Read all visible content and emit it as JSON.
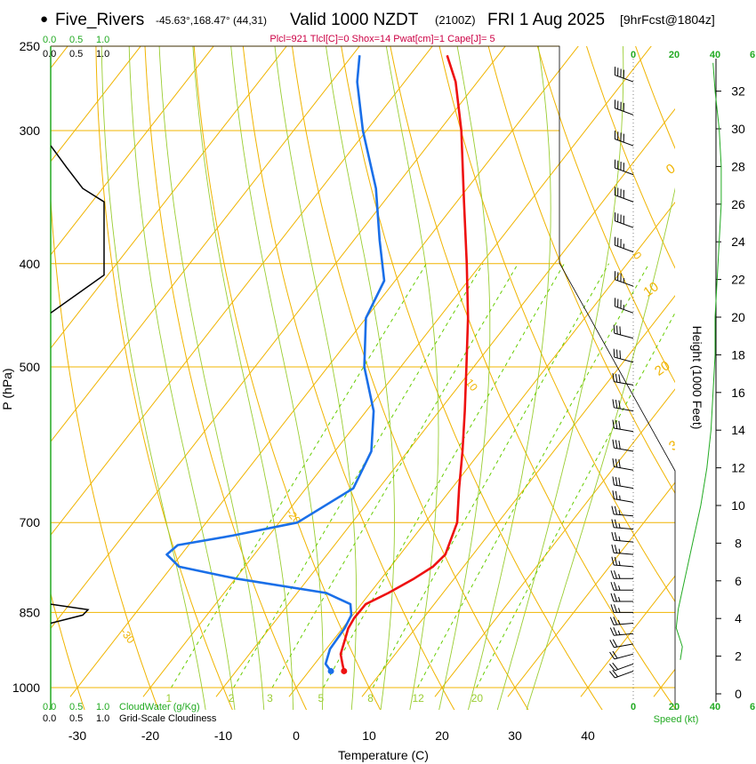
{
  "header": {
    "station_bullet": "●",
    "station": "Five_Rivers",
    "coords": "-45.63°,168.47° (44,31)",
    "valid": "Valid 1000 NZDT",
    "valid_z": "(2100Z)",
    "date": "FRI 1 Aug 2025",
    "fcst": "[9hrFcst@1804z]",
    "indices": "Plcl=921 Tlcl[C]=0 Shox=14 Pwat[cm]=1 Cape[J]= 5"
  },
  "colors": {
    "temperature": "#ee1111",
    "dewpoint": "#1a6fe8",
    "isotherm": "#f0b400",
    "dry_adiabat": "#f0b400",
    "moist_adiabat": "#9acd32",
    "mixing_ratio": "#66cc00",
    "cloud": "#000000",
    "wind_profile": "#22aa22",
    "indices_text": "#cc0044"
  },
  "chart_data": {
    "type": "line",
    "title": "Skew-T log-P sounding",
    "xlabel": "Temperature (C)",
    "ylabel": "P (hPa)",
    "right_label": "Height (1000 Feet)",
    "xlim": [
      -35,
      48
    ],
    "ylim": [
      1000,
      250
    ],
    "pressure_ticks": [
      250,
      300,
      400,
      500,
      700,
      850,
      1000
    ],
    "temp_ticks": [
      "-30",
      "-20",
      "-10",
      "0",
      "10",
      "20",
      "30",
      "40"
    ],
    "height_ticks": [
      "0",
      "2",
      "4",
      "6",
      "8",
      "10",
      "12",
      "14",
      "16",
      "18",
      "20",
      "22",
      "24",
      "26",
      "28",
      "30",
      "32"
    ],
    "isotherm_labels": [
      "10",
      "0",
      "-10",
      "-20",
      "-30",
      "0",
      "10",
      "20",
      "30"
    ],
    "mixing_ratio_labels": [
      "1",
      "2",
      "3",
      "5",
      "8",
      "12",
      "20"
    ],
    "cloud_scale_top": [
      "0.0",
      "0.5",
      "1.0"
    ],
    "cloud_scale_bottom": [
      "0.0",
      "0.5",
      "1.0"
    ],
    "cloudwater_label": "CloudWater (g/Kg)",
    "cloudiness_label": "Grid-Scale Cloudiness",
    "speed_ticks": [
      "0",
      "20",
      "40",
      "6"
    ],
    "speed_label": "Speed (kt)",
    "temperature": [
      {
        "p": 965,
        "t": 4.8
      },
      {
        "p": 950,
        "t": 3.8
      },
      {
        "p": 930,
        "t": 2.5
      },
      {
        "p": 900,
        "t": 1.5
      },
      {
        "p": 880,
        "t": 0.8
      },
      {
        "p": 860,
        "t": 0.5
      },
      {
        "p": 835,
        "t": 0.6
      },
      {
        "p": 815,
        "t": 2.5
      },
      {
        "p": 790,
        "t": 4.5
      },
      {
        "p": 770,
        "t": 5.8
      },
      {
        "p": 750,
        "t": 6.2
      },
      {
        "p": 700,
        "t": 4.4
      },
      {
        "p": 650,
        "t": 1.0
      },
      {
        "p": 600,
        "t": -2.5
      },
      {
        "p": 550,
        "t": -6.5
      },
      {
        "p": 500,
        "t": -11.0
      },
      {
        "p": 450,
        "t": -16.0
      },
      {
        "p": 400,
        "t": -22.0
      },
      {
        "p": 350,
        "t": -29.0
      },
      {
        "p": 300,
        "t": -37.0
      },
      {
        "p": 270,
        "t": -43.0
      },
      {
        "p": 255,
        "t": -47.0
      }
    ],
    "dewpoint": [
      {
        "p": 965,
        "t": 3.0
      },
      {
        "p": 950,
        "t": 1.5
      },
      {
        "p": 920,
        "t": 0.5
      },
      {
        "p": 880,
        "t": 0.3
      },
      {
        "p": 855,
        "t": -0.2
      },
      {
        "p": 835,
        "t": -1.5
      },
      {
        "p": 815,
        "t": -6.0
      },
      {
        "p": 790,
        "t": -20.0
      },
      {
        "p": 770,
        "t": -29.0
      },
      {
        "p": 750,
        "t": -32.0
      },
      {
        "p": 735,
        "t": -31.5
      },
      {
        "p": 720,
        "t": -25.0
      },
      {
        "p": 700,
        "t": -17.5
      },
      {
        "p": 650,
        "t": -13.5
      },
      {
        "p": 600,
        "t": -15.0
      },
      {
        "p": 550,
        "t": -19.0
      },
      {
        "p": 500,
        "t": -25.0
      },
      {
        "p": 450,
        "t": -30.0
      },
      {
        "p": 415,
        "t": -31.5
      },
      {
        "p": 380,
        "t": -36.5
      },
      {
        "p": 340,
        "t": -42.5
      },
      {
        "p": 300,
        "t": -50.5
      },
      {
        "p": 270,
        "t": -56.5
      },
      {
        "p": 255,
        "t": -59.0
      }
    ],
    "cloud_fraction": [
      {
        "p": 310,
        "c": 0.0
      },
      {
        "p": 325,
        "c": 0.3
      },
      {
        "p": 340,
        "c": 0.6
      },
      {
        "p": 350,
        "c": 1.0
      },
      {
        "p": 410,
        "c": 1.0
      },
      {
        "p": 445,
        "c": 0.0
      },
      {
        "p": 835,
        "c": 0.0
      },
      {
        "p": 845,
        "c": 0.7
      },
      {
        "p": 855,
        "c": 0.6
      },
      {
        "p": 870,
        "c": 0.0
      }
    ],
    "wind_speed_profile": [
      {
        "h": 1.8,
        "s": 23
      },
      {
        "h": 2.5,
        "s": 24
      },
      {
        "h": 3.5,
        "s": 21
      },
      {
        "h": 4.5,
        "s": 22
      },
      {
        "h": 5.5,
        "s": 24
      },
      {
        "h": 6.5,
        "s": 26
      },
      {
        "h": 8.0,
        "s": 29
      },
      {
        "h": 10.0,
        "s": 33
      },
      {
        "h": 12.0,
        "s": 36
      },
      {
        "h": 14.0,
        "s": 38
      },
      {
        "h": 16.0,
        "s": 39
      },
      {
        "h": 18.0,
        "s": 40
      },
      {
        "h": 20.0,
        "s": 40
      },
      {
        "h": 22.0,
        "s": 41
      },
      {
        "h": 24.0,
        "s": 42
      },
      {
        "h": 26.0,
        "s": 43
      },
      {
        "h": 28.0,
        "s": 43
      },
      {
        "h": 30.0,
        "s": 42
      },
      {
        "h": 32.0,
        "s": 40
      },
      {
        "h": 33.5,
        "s": 39
      }
    ],
    "wind_barbs": [
      {
        "p": 270,
        "dir": 290,
        "spd": 40
      },
      {
        "p": 290,
        "dir": 290,
        "spd": 40
      },
      {
        "p": 310,
        "dir": 290,
        "spd": 40
      },
      {
        "p": 330,
        "dir": 290,
        "spd": 40
      },
      {
        "p": 350,
        "dir": 290,
        "spd": 40
      },
      {
        "p": 370,
        "dir": 290,
        "spd": 40
      },
      {
        "p": 390,
        "dir": 290,
        "spd": 35
      },
      {
        "p": 420,
        "dir": 290,
        "spd": 35
      },
      {
        "p": 445,
        "dir": 290,
        "spd": 35
      },
      {
        "p": 470,
        "dir": 285,
        "spd": 30
      },
      {
        "p": 495,
        "dir": 285,
        "spd": 30
      },
      {
        "p": 520,
        "dir": 280,
        "spd": 30
      },
      {
        "p": 550,
        "dir": 280,
        "spd": 30
      },
      {
        "p": 575,
        "dir": 280,
        "spd": 30
      },
      {
        "p": 600,
        "dir": 280,
        "spd": 30
      },
      {
        "p": 625,
        "dir": 280,
        "spd": 30
      },
      {
        "p": 650,
        "dir": 280,
        "spd": 30
      },
      {
        "p": 670,
        "dir": 280,
        "spd": 25
      },
      {
        "p": 690,
        "dir": 275,
        "spd": 25
      },
      {
        "p": 710,
        "dir": 275,
        "spd": 25
      },
      {
        "p": 730,
        "dir": 275,
        "spd": 25
      },
      {
        "p": 750,
        "dir": 275,
        "spd": 25
      },
      {
        "p": 770,
        "dir": 275,
        "spd": 25
      },
      {
        "p": 790,
        "dir": 270,
        "spd": 25
      },
      {
        "p": 810,
        "dir": 270,
        "spd": 25
      },
      {
        "p": 830,
        "dir": 270,
        "spd": 25
      },
      {
        "p": 850,
        "dir": 270,
        "spd": 25
      },
      {
        "p": 870,
        "dir": 265,
        "spd": 25
      },
      {
        "p": 890,
        "dir": 265,
        "spd": 25
      },
      {
        "p": 910,
        "dir": 260,
        "spd": 20
      },
      {
        "p": 930,
        "dir": 255,
        "spd": 20
      },
      {
        "p": 950,
        "dir": 250,
        "spd": 20
      },
      {
        "p": 965,
        "dir": 250,
        "spd": 20
      }
    ]
  }
}
